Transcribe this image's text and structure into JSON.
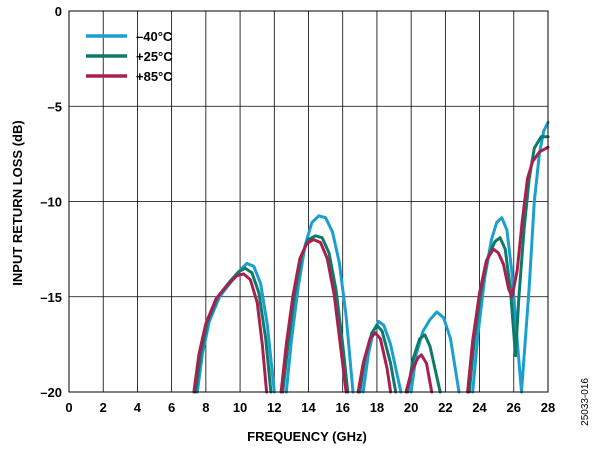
{
  "figure_id": "25033-016",
  "chart_data": {
    "type": "line",
    "title": "",
    "xlabel": "FREQUENCY (GHz)",
    "ylabel": "INPUT RETURN LOSS (dB)",
    "xlim": [
      0,
      28
    ],
    "ylim": [
      -20,
      0
    ],
    "xticks": [
      0,
      2,
      4,
      6,
      8,
      10,
      12,
      14,
      16,
      18,
      20,
      22,
      24,
      26,
      28
    ],
    "yticks": [
      0,
      -5,
      -10,
      -15,
      -20
    ],
    "grid": true,
    "legend_position": "top-left",
    "series": [
      {
        "name": "–40°C",
        "color": "#1a9fd0",
        "segments": [
          [
            [
              7.5,
              -20
            ],
            [
              7.8,
              -18
            ],
            [
              8.2,
              -16.3
            ],
            [
              8.8,
              -15.0
            ],
            [
              9.5,
              -14.2
            ],
            [
              10.0,
              -13.6
            ],
            [
              10.4,
              -13.25
            ],
            [
              10.8,
              -13.4
            ],
            [
              11.2,
              -14.3
            ],
            [
              11.6,
              -16.5
            ],
            [
              12.0,
              -20
            ]
          ],
          [
            [
              12.7,
              -20
            ],
            [
              13.0,
              -17.3
            ],
            [
              13.4,
              -14.5
            ],
            [
              13.8,
              -12.3
            ],
            [
              14.2,
              -11.1
            ],
            [
              14.6,
              -10.75
            ],
            [
              15.0,
              -10.85
            ],
            [
              15.4,
              -11.6
            ],
            [
              15.8,
              -13.2
            ],
            [
              16.2,
              -16.0
            ],
            [
              16.6,
              -20
            ]
          ],
          [
            [
              17.2,
              -20
            ],
            [
              17.5,
              -18.0
            ],
            [
              17.8,
              -16.8
            ],
            [
              18.1,
              -16.3
            ],
            [
              18.4,
              -16.5
            ],
            [
              18.8,
              -17.5
            ],
            [
              19.4,
              -20
            ]
          ],
          [
            [
              20.0,
              -20
            ],
            [
              20.3,
              -18.0
            ],
            [
              20.7,
              -16.8
            ],
            [
              21.1,
              -16.2
            ],
            [
              21.5,
              -15.8
            ],
            [
              21.9,
              -16.1
            ],
            [
              22.3,
              -17.2
            ],
            [
              22.8,
              -20
            ]
          ],
          [
            [
              23.6,
              -20
            ],
            [
              23.9,
              -17.0
            ],
            [
              24.3,
              -14.0
            ],
            [
              24.7,
              -12.0
            ],
            [
              25.0,
              -11.1
            ],
            [
              25.3,
              -10.85
            ],
            [
              25.6,
              -11.5
            ],
            [
              25.9,
              -13.8
            ],
            [
              26.2,
              -17.3
            ],
            [
              26.45,
              -20
            ],
            [
              26.6,
              -18.2
            ],
            [
              26.9,
              -14.5
            ],
            [
              27.2,
              -10.0
            ],
            [
              27.5,
              -7.5
            ],
            [
              27.75,
              -6.3
            ],
            [
              28.0,
              -5.85
            ]
          ]
        ]
      },
      {
        "name": "+25°C",
        "color": "#0e7a6a",
        "segments": [
          [
            [
              7.4,
              -20
            ],
            [
              7.7,
              -18
            ],
            [
              8.1,
              -16.3
            ],
            [
              8.7,
              -15.0
            ],
            [
              9.4,
              -14.2
            ],
            [
              9.9,
              -13.7
            ],
            [
              10.3,
              -13.5
            ],
            [
              10.7,
              -13.75
            ],
            [
              11.1,
              -14.8
            ],
            [
              11.5,
              -17.2
            ],
            [
              11.8,
              -20
            ]
          ],
          [
            [
              12.5,
              -20
            ],
            [
              12.8,
              -17.5
            ],
            [
              13.2,
              -14.8
            ],
            [
              13.6,
              -12.8
            ],
            [
              14.0,
              -12.0
            ],
            [
              14.4,
              -11.8
            ],
            [
              14.8,
              -11.9
            ],
            [
              15.2,
              -12.7
            ],
            [
              15.6,
              -14.6
            ],
            [
              16.0,
              -17.5
            ],
            [
              16.3,
              -20
            ]
          ],
          [
            [
              17.0,
              -20
            ],
            [
              17.3,
              -18.2
            ],
            [
              17.7,
              -16.9
            ],
            [
              18.0,
              -16.5
            ],
            [
              18.3,
              -16.8
            ],
            [
              18.8,
              -18.5
            ],
            [
              19.1,
              -20
            ]
          ],
          [
            [
              19.8,
              -20
            ],
            [
              20.1,
              -18.3
            ],
            [
              20.5,
              -17.2
            ],
            [
              20.8,
              -17.0
            ],
            [
              21.1,
              -17.6
            ],
            [
              21.5,
              -19.2
            ],
            [
              21.7,
              -20
            ]
          ],
          [
            [
              23.4,
              -20
            ],
            [
              23.7,
              -17.2
            ],
            [
              24.1,
              -14.6
            ],
            [
              24.5,
              -12.9
            ],
            [
              24.9,
              -12.1
            ],
            [
              25.2,
              -11.9
            ],
            [
              25.5,
              -12.5
            ],
            [
              25.8,
              -14.6
            ],
            [
              26.1,
              -18.1
            ],
            [
              26.3,
              -15.0
            ],
            [
              26.6,
              -11.5
            ],
            [
              26.9,
              -8.8
            ],
            [
              27.2,
              -7.2
            ],
            [
              27.6,
              -6.6
            ],
            [
              28.0,
              -6.6
            ]
          ]
        ]
      },
      {
        "name": "+85°C",
        "color": "#a8204e",
        "segments": [
          [
            [
              7.3,
              -20
            ],
            [
              7.6,
              -18
            ],
            [
              8.0,
              -16.4
            ],
            [
              8.6,
              -15.1
            ],
            [
              9.3,
              -14.35
            ],
            [
              9.8,
              -13.9
            ],
            [
              10.2,
              -13.8
            ],
            [
              10.6,
              -14.1
            ],
            [
              11.0,
              -15.3
            ],
            [
              11.3,
              -17.5
            ],
            [
              11.55,
              -20
            ]
          ],
          [
            [
              12.4,
              -20
            ],
            [
              12.7,
              -17.5
            ],
            [
              13.1,
              -14.9
            ],
            [
              13.5,
              -13.0
            ],
            [
              13.9,
              -12.2
            ],
            [
              14.3,
              -12.0
            ],
            [
              14.7,
              -12.15
            ],
            [
              15.1,
              -13.0
            ],
            [
              15.5,
              -14.9
            ],
            [
              15.9,
              -17.8
            ],
            [
              16.2,
              -20
            ]
          ],
          [
            [
              16.9,
              -20
            ],
            [
              17.2,
              -18.5
            ],
            [
              17.6,
              -17.2
            ],
            [
              17.9,
              -16.9
            ],
            [
              18.2,
              -17.2
            ],
            [
              18.6,
              -18.8
            ],
            [
              18.8,
              -20
            ]
          ],
          [
            [
              19.7,
              -20
            ],
            [
              20.0,
              -19.0
            ],
            [
              20.4,
              -18.2
            ],
            [
              20.6,
              -18.05
            ],
            [
              20.9,
              -18.5
            ],
            [
              21.2,
              -20
            ]
          ],
          [
            [
              23.3,
              -20
            ],
            [
              23.6,
              -17.3
            ],
            [
              24.0,
              -14.8
            ],
            [
              24.4,
              -13.1
            ],
            [
              24.8,
              -12.5
            ],
            [
              25.1,
              -12.7
            ],
            [
              25.4,
              -13.3
            ],
            [
              25.7,
              -14.6
            ],
            [
              25.9,
              -15.0
            ],
            [
              26.2,
              -13.6
            ],
            [
              26.5,
              -11.0
            ],
            [
              26.8,
              -8.8
            ],
            [
              27.1,
              -7.9
            ],
            [
              27.5,
              -7.4
            ],
            [
              28.0,
              -7.15
            ]
          ]
        ]
      }
    ]
  }
}
